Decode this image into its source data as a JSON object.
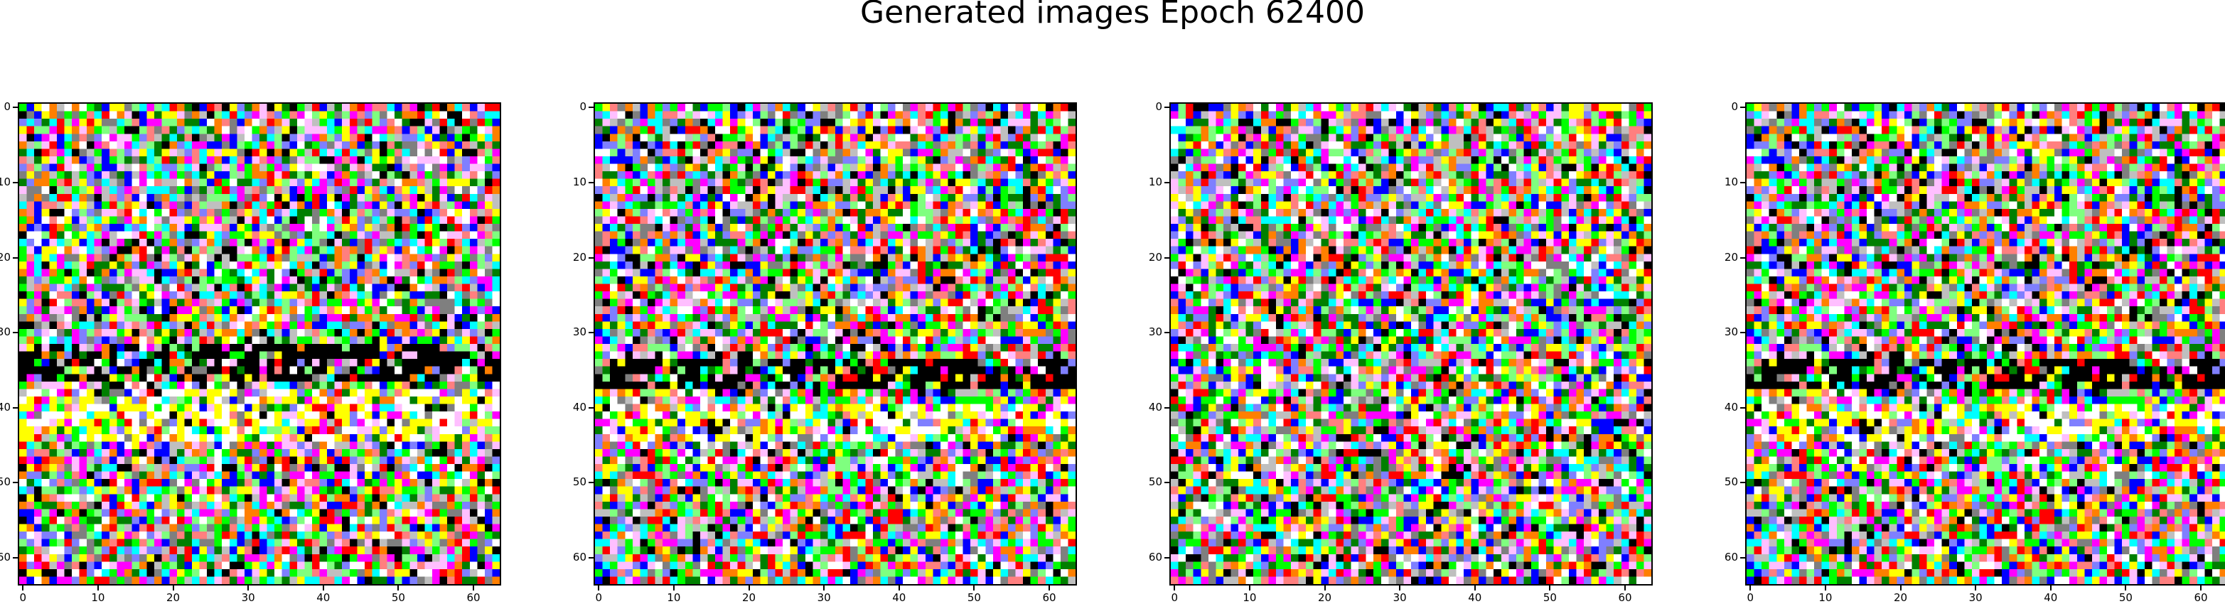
{
  "title": "Generated images Epoch 62400",
  "panels": [
    {
      "seed": 11,
      "dark_band_rows": [
        32,
        36
      ],
      "bright_band_rows": [
        38,
        44
      ]
    },
    {
      "seed": 23,
      "dark_band_rows": [
        34,
        37
      ],
      "bright_band_rows": [
        40,
        44
      ]
    },
    {
      "seed": 37,
      "dark_band_rows": [],
      "bright_band_rows": []
    },
    {
      "seed": 23,
      "dark_band_rows": [
        34,
        37
      ],
      "bright_band_rows": [
        40,
        44
      ]
    }
  ],
  "image_size": 64,
  "palette": [
    "#000000",
    "#ffffff",
    "#ff0000",
    "#00ff00",
    "#0000ff",
    "#ffff00",
    "#00ffff",
    "#ff00ff",
    "#7f7f7f",
    "#ff7f7f",
    "#7fff7f",
    "#ff7f00",
    "#007f00",
    "#bfbfbf",
    "#7f7fff",
    "#ffbfff"
  ],
  "ticks": {
    "x_labels": [
      "0",
      "10",
      "20",
      "30",
      "40",
      "50",
      "60"
    ],
    "y_labels": [
      "0",
      "10",
      "20",
      "30",
      "40",
      "50",
      "60"
    ]
  }
}
